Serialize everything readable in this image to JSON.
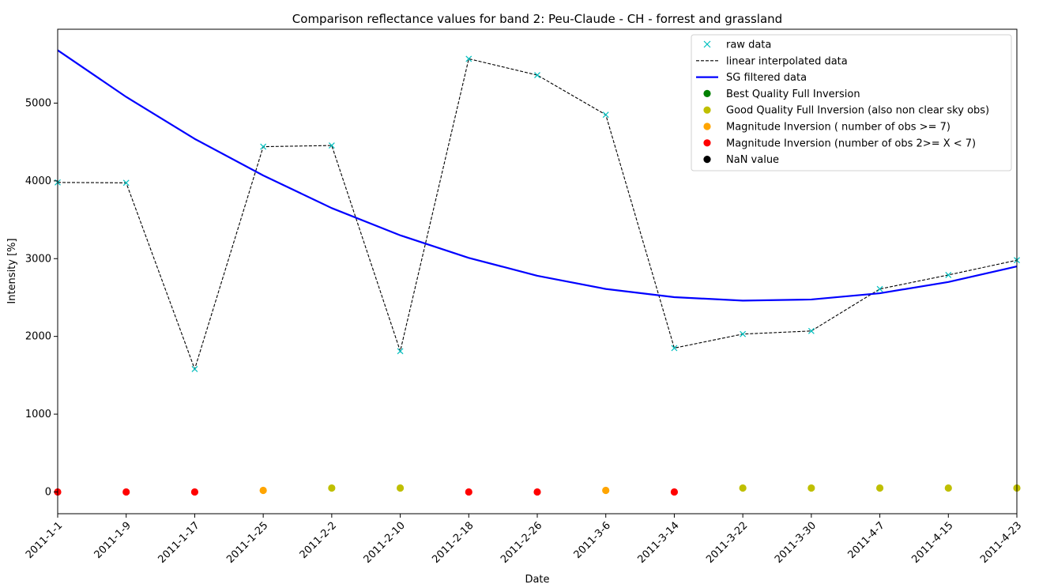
{
  "chart_data": {
    "type": "line",
    "title": "Comparison reflectance values for band 2: Peu-Claude - CH - forrest and grassland",
    "xlabel": "Date",
    "ylabel": "Intensity [%]",
    "ylim": [
      -280,
      5950
    ],
    "yticks": [
      0,
      1000,
      2000,
      3000,
      4000,
      5000
    ],
    "categories": [
      "2011-1-1",
      "2011-1-9",
      "2011-1-17",
      "2011-1-25",
      "2011-2-2",
      "2011-2-10",
      "2011-2-18",
      "2011-2-26",
      "2011-3-6",
      "2011-3-14",
      "2011-3-22",
      "2011-3-30",
      "2011-4-7",
      "2011-4-15",
      "2011-4-23"
    ],
    "grid": false,
    "legend_position": "top-right",
    "series": [
      {
        "name": "raw data",
        "kind": "marker-x",
        "color": "#00bfbf",
        "values": [
          3980,
          3975,
          1580,
          4440,
          4455,
          1810,
          5570,
          5360,
          4850,
          1850,
          2030,
          2070,
          2610,
          2790,
          2980
        ]
      },
      {
        "name": "linear interpolated data",
        "kind": "dashed-line",
        "color": "#000000",
        "values": [
          3980,
          3975,
          1580,
          4440,
          4455,
          1810,
          5570,
          5360,
          4850,
          1850,
          2030,
          2070,
          2610,
          2790,
          2980
        ]
      },
      {
        "name": "SG filtered data",
        "kind": "line",
        "color": "#0000ff",
        "values": [
          5680,
          5080,
          4540,
          4070,
          3650,
          3300,
          3010,
          2780,
          2610,
          2505,
          2460,
          2475,
          2555,
          2700,
          2900
        ]
      }
    ],
    "quality_points": {
      "values": [
        0,
        0,
        0,
        20,
        50,
        50,
        0,
        0,
        20,
        0,
        50,
        50,
        50,
        50,
        50
      ],
      "classes": [
        "red",
        "red",
        "red",
        "orange",
        "olive",
        "olive",
        "red",
        "red",
        "orange",
        "red",
        "olive",
        "olive",
        "olive",
        "olive",
        "olive"
      ]
    },
    "legend": [
      {
        "label": "raw data",
        "symbol": "x",
        "color": "#00bfbf"
      },
      {
        "label": "linear interpolated data",
        "symbol": "dash",
        "color": "#000000"
      },
      {
        "label": "SG filtered data",
        "symbol": "line",
        "color": "#0000ff"
      },
      {
        "label": "Best Quality Full Inversion",
        "symbol": "dot",
        "color": "#008000"
      },
      {
        "label": "Good Quality Full Inversion (also non clear sky obs)",
        "symbol": "dot",
        "color": "#bfbf00"
      },
      {
        "label": "Magnitude Inversion ( number of obs >= 7)",
        "symbol": "dot",
        "color": "#ffa500"
      },
      {
        "label": "Magnitude Inversion (number of obs 2>= X < 7)",
        "symbol": "dot",
        "color": "#ff0000"
      },
      {
        "label": "NaN value",
        "symbol": "dot",
        "color": "#000000"
      }
    ],
    "class_colors": {
      "green": "#008000",
      "olive": "#bfbf00",
      "orange": "#ffa500",
      "red": "#ff0000",
      "black": "#000000"
    }
  }
}
